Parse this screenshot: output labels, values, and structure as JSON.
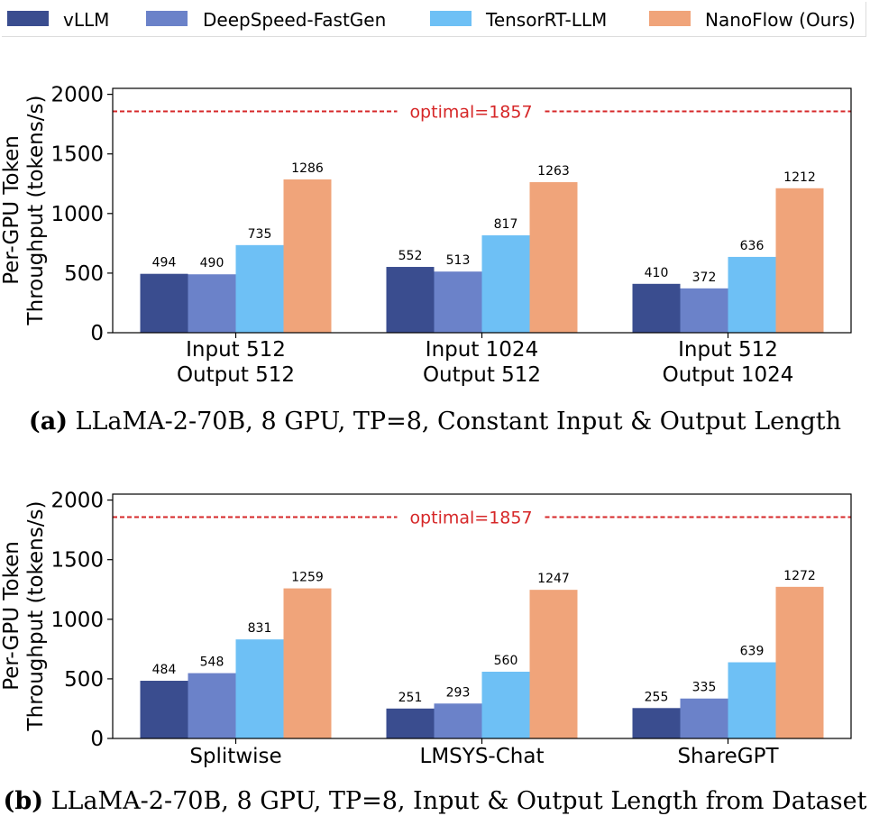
{
  "legend": {
    "items": [
      {
        "label": "vLLM",
        "color": "#3a4d8f"
      },
      {
        "label": "DeepSpeed-FastGen",
        "color": "#6b82c9"
      },
      {
        "label": "TensorRT-LLM",
        "color": "#6ec0f5"
      },
      {
        "label": "NanoFlow (Ours)",
        "color": "#f0a47a"
      }
    ]
  },
  "chart_data": [
    {
      "type": "bar",
      "ylabel": "Per-GPU Token\nThroughput (tokens/s)",
      "ylim": [
        0,
        2050
      ],
      "yticks": [
        0,
        500,
        1000,
        1500,
        2000
      ],
      "categories": [
        "Input 512\nOutput 512",
        "Input 1024\nOutput 512",
        "Input 512\nOutput 1024"
      ],
      "series": [
        {
          "name": "vLLM",
          "values": [
            494,
            552,
            410
          ]
        },
        {
          "name": "DeepSpeed-FastGen",
          "values": [
            490,
            513,
            372
          ]
        },
        {
          "name": "TensorRT-LLM",
          "values": [
            735,
            817,
            636
          ]
        },
        {
          "name": "NanoFlow (Ours)",
          "values": [
            1286,
            1263,
            1212
          ]
        }
      ],
      "reference_line": {
        "value": 1857,
        "label": "optimal=1857",
        "color": "#d62728"
      },
      "caption_label": "(a)",
      "caption_text": " LLaMA-2-70B, 8 GPU, TP=8, Constant Input & Output Length"
    },
    {
      "type": "bar",
      "ylabel": "Per-GPU Token\nThroughput (tokens/s)",
      "ylim": [
        0,
        2050
      ],
      "yticks": [
        0,
        500,
        1000,
        1500,
        2000
      ],
      "categories": [
        "Splitwise",
        "LMSYS-Chat",
        "ShareGPT"
      ],
      "series": [
        {
          "name": "vLLM",
          "values": [
            484,
            251,
            255
          ]
        },
        {
          "name": "DeepSpeed-FastGen",
          "values": [
            548,
            293,
            335
          ]
        },
        {
          "name": "TensorRT-LLM",
          "values": [
            831,
            560,
            639
          ]
        },
        {
          "name": "NanoFlow (Ours)",
          "values": [
            1259,
            1247,
            1272
          ]
        }
      ],
      "reference_line": {
        "value": 1857,
        "label": "optimal=1857",
        "color": "#d62728"
      },
      "caption_label": "(b)",
      "caption_text": " LLaMA-2-70B, 8 GPU, TP=8, Input & Output Length from Dataset"
    }
  ]
}
